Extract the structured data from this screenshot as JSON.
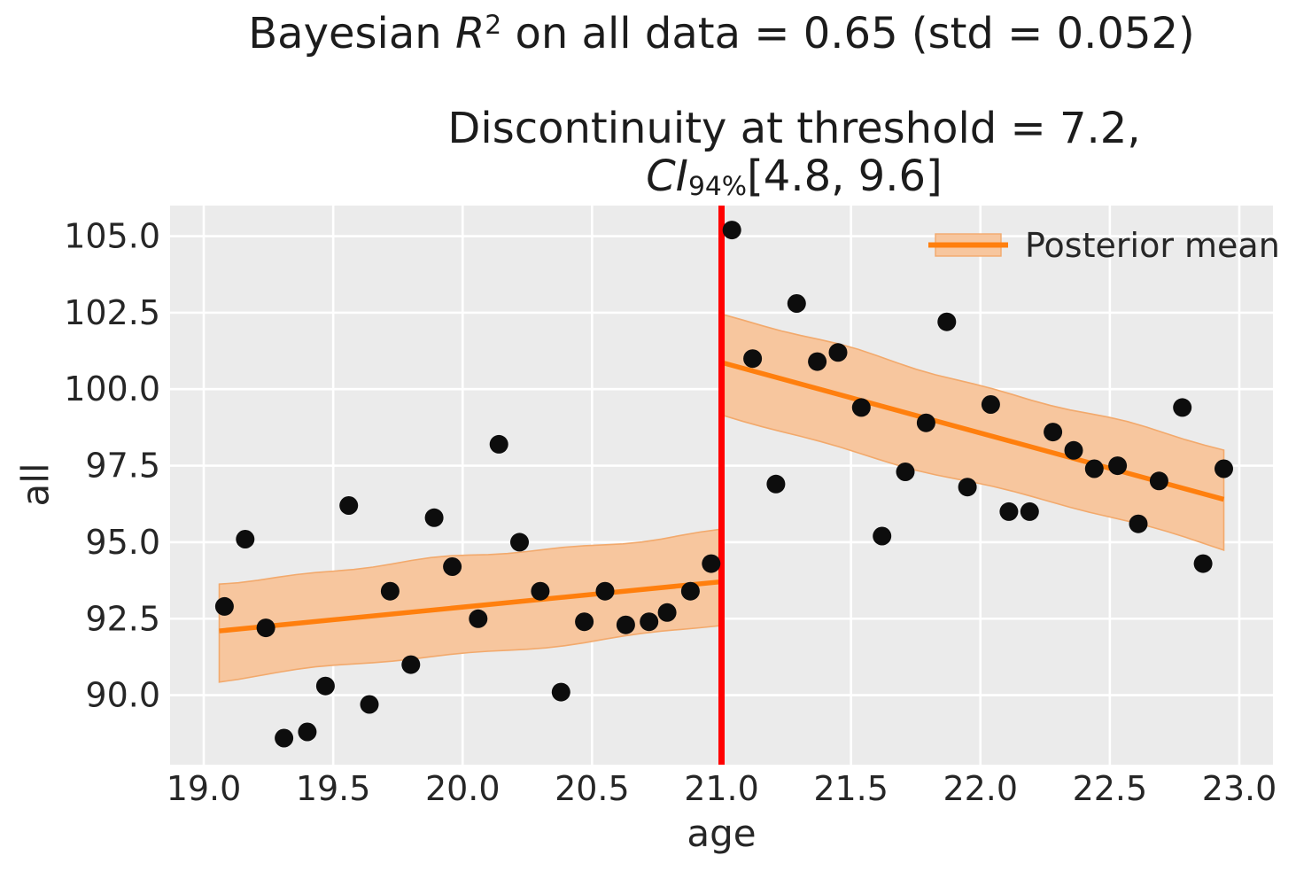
{
  "figure": {
    "title_parts": {
      "pre": "Bayesian ",
      "var": "R",
      "sup": "2",
      "post": " on all data = 0.65 (std = 0.052)"
    },
    "axes_title": {
      "line1": "Discontinuity at threshold = 7.2,",
      "line2_var": "CI",
      "line2_sub": "94%",
      "line2_post": "[4.8, 9.6]"
    }
  },
  "chart_data": {
    "type": "scatter",
    "title": "Bayesian R^2 on all data = 0.65 (std = 0.052)",
    "subtitle": "Discontinuity at threshold = 7.2, CI_94%[4.8, 9.6]",
    "xlabel": "age",
    "ylabel": "all",
    "xlim": [
      18.87,
      23.13
    ],
    "ylim": [
      87.73,
      106.0
    ],
    "grid": true,
    "x_ticks": [
      19.0,
      19.5,
      20.0,
      20.5,
      21.0,
      21.5,
      22.0,
      22.5,
      23.0
    ],
    "x_tick_labels": [
      "19.0",
      "19.5",
      "20.0",
      "20.5",
      "21.0",
      "21.5",
      "22.0",
      "22.5",
      "23.0"
    ],
    "y_ticks": [
      105.0,
      102.5,
      100.0,
      97.5,
      95.0,
      92.5,
      90.0
    ],
    "y_tick_labels": [
      "105.0",
      "102.5",
      "100.0",
      "97.5",
      "95.0",
      "92.5",
      "90.0"
    ],
    "threshold_line": {
      "x": 21.0
    },
    "points": [
      [
        19.08,
        92.9
      ],
      [
        19.16,
        95.1
      ],
      [
        19.24,
        92.2
      ],
      [
        19.31,
        88.6
      ],
      [
        19.4,
        88.8
      ],
      [
        19.47,
        90.3
      ],
      [
        19.56,
        96.2
      ],
      [
        19.64,
        89.7
      ],
      [
        19.72,
        93.4
      ],
      [
        19.8,
        91.0
      ],
      [
        19.89,
        95.8
      ],
      [
        19.96,
        94.2
      ],
      [
        20.06,
        92.5
      ],
      [
        20.14,
        98.2
      ],
      [
        20.22,
        95.0
      ],
      [
        20.3,
        93.4
      ],
      [
        20.38,
        90.1
      ],
      [
        20.47,
        92.4
      ],
      [
        20.55,
        93.4
      ],
      [
        20.63,
        92.3
      ],
      [
        20.72,
        92.4
      ],
      [
        20.79,
        92.7
      ],
      [
        20.88,
        93.4
      ],
      [
        20.96,
        94.3
      ],
      [
        21.04,
        105.2
      ],
      [
        21.12,
        101.0
      ],
      [
        21.21,
        96.9
      ],
      [
        21.29,
        102.8
      ],
      [
        21.37,
        100.9
      ],
      [
        21.45,
        101.2
      ],
      [
        21.54,
        99.4
      ],
      [
        21.62,
        95.2
      ],
      [
        21.71,
        97.3
      ],
      [
        21.79,
        98.9
      ],
      [
        21.87,
        102.2
      ],
      [
        21.95,
        96.8
      ],
      [
        22.04,
        99.5
      ],
      [
        22.11,
        96.0
      ],
      [
        22.19,
        96.0
      ],
      [
        22.28,
        98.6
      ],
      [
        22.36,
        98.0
      ],
      [
        22.44,
        97.4
      ],
      [
        22.53,
        97.5
      ],
      [
        22.61,
        95.6
      ],
      [
        22.69,
        97.0
      ],
      [
        22.78,
        99.4
      ],
      [
        22.86,
        94.3
      ],
      [
        22.94,
        97.4
      ]
    ],
    "posterior_segments": [
      {
        "x": [
          19.06,
          20.99
        ],
        "mean": [
          92.1,
          93.7
        ],
        "upper": [
          93.7,
          95.35
        ],
        "lower": [
          90.5,
          92.25
        ]
      },
      {
        "x": [
          21.01,
          22.94
        ],
        "mean": [
          100.85,
          96.4
        ],
        "upper": [
          102.4,
          98.0
        ],
        "lower": [
          99.1,
          94.8
        ]
      }
    ],
    "legend": {
      "label": "Posterior mean",
      "position": "upper right"
    },
    "colors": {
      "posterior_line": "#ff7f0e",
      "band_fill": "#f7c69e",
      "band_edge": "#f2a96c",
      "threshold": "#ff0000",
      "point": "#0d0d0d",
      "axes_bg": "#ebebeb",
      "gridline": "#ffffff",
      "tick_text": "#262626"
    }
  }
}
